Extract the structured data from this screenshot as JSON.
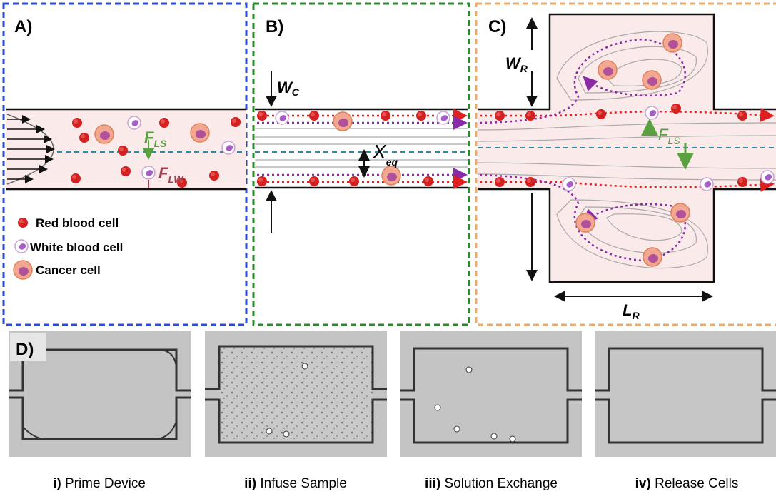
{
  "panels": {
    "a": {
      "label": "A)",
      "forces": [
        {
          "symbol": "F",
          "subscript": "LS"
        },
        {
          "symbol": "F",
          "subscript": "LW"
        }
      ],
      "legend": [
        "Red blood cell",
        "White blood cell",
        "Cancer cell"
      ]
    },
    "b": {
      "label": "B)",
      "width": {
        "symbol": "W",
        "subscript": "C"
      },
      "equilibrium": {
        "symbol": "X",
        "subscript": "eq"
      }
    },
    "c": {
      "label": "C)",
      "width": {
        "symbol": "W",
        "subscript": "R"
      },
      "length": {
        "symbol": "L",
        "subscript": "R"
      },
      "force": {
        "symbol": "F",
        "subscript": "LS"
      }
    },
    "d": {
      "label": "D)",
      "steps": [
        {
          "numeral": "i)",
          "label": "Prime Device"
        },
        {
          "numeral": "ii)",
          "label": "Infuse Sample"
        },
        {
          "numeral": "iii)",
          "label": "Solution Exchange"
        },
        {
          "numeral": "iv)",
          "label": "Release Cells"
        }
      ]
    }
  }
}
